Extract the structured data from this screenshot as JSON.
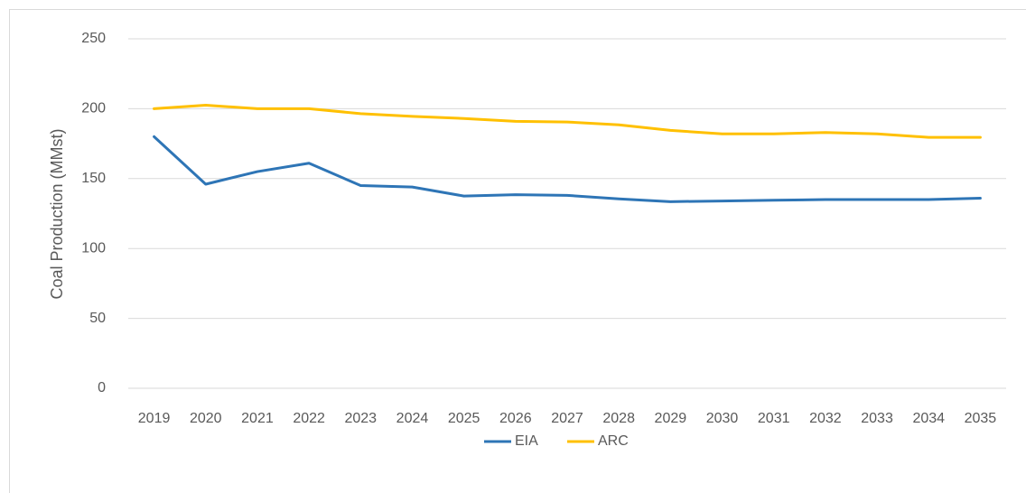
{
  "chart_data": {
    "type": "line",
    "ylabel": "Coal Production (MMst)",
    "categories": [
      "2019",
      "2020",
      "2021",
      "2022",
      "2023",
      "2024",
      "2025",
      "2026",
      "2027",
      "2028",
      "2029",
      "2030",
      "2031",
      "2032",
      "2033",
      "2034",
      "2035"
    ],
    "series": [
      {
        "name": "EIA",
        "color": "#2e75b6",
        "values": [
          180,
          146,
          155,
          161,
          145,
          144,
          137.5,
          138.5,
          138,
          135.5,
          133.5,
          134,
          134.5,
          135,
          135,
          135,
          136
        ]
      },
      {
        "name": "ARC",
        "color": "#ffc000",
        "values": [
          200,
          202.5,
          200,
          200,
          196.5,
          194.5,
          193,
          191,
          190.5,
          188.5,
          184.5,
          182,
          182,
          183,
          182,
          179.5,
          179.5
        ]
      }
    ],
    "ylim": [
      0,
      250
    ],
    "yticks": [
      0,
      50,
      100,
      150,
      200,
      250
    ],
    "grid": true,
    "legend": "bottom"
  }
}
